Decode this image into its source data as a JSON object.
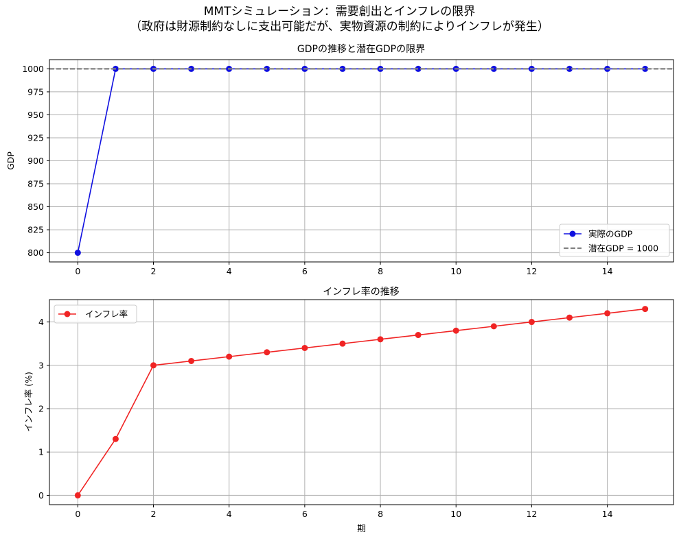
{
  "suptitle": {
    "line1": "MMTシミュレーション：需要創出とインフレの限界",
    "line2": "（政府は財源制約なしに支出可能だが、実物資源の制約によりインフレが発生）"
  },
  "colors": {
    "gdp": "#1010e0",
    "potential": "#808080",
    "inflation": "#f02424",
    "grid": "#b0b0b0"
  },
  "chart_data": [
    {
      "type": "line",
      "title": "GDPの推移と潜在GDPの限界",
      "xlabel": "",
      "ylabel": "GDP",
      "x": [
        0,
        1,
        2,
        3,
        4,
        5,
        6,
        7,
        8,
        9,
        10,
        11,
        12,
        13,
        14,
        15
      ],
      "xlim": [
        -0.75,
        15.75
      ],
      "ylim": [
        790,
        1010
      ],
      "xticks": [
        0,
        2,
        4,
        6,
        8,
        10,
        12,
        14
      ],
      "yticks": [
        800,
        825,
        850,
        875,
        900,
        925,
        950,
        975,
        1000
      ],
      "grid": true,
      "legend_position": "lower-right",
      "series": [
        {
          "name": "実際のGDP",
          "style": "solid-marker",
          "color": "#1010e0",
          "values": [
            800,
            1000,
            1000,
            1000,
            1000,
            1000,
            1000,
            1000,
            1000,
            1000,
            1000,
            1000,
            1000,
            1000,
            1000,
            1000
          ]
        },
        {
          "name": "潜在GDP = 1000",
          "style": "dashed-hline",
          "color": "#808080",
          "value": 1000
        }
      ]
    },
    {
      "type": "line",
      "title": "インフレ率の推移",
      "xlabel": "期",
      "ylabel": "インフレ率 (%)",
      "x": [
        0,
        1,
        2,
        3,
        4,
        5,
        6,
        7,
        8,
        9,
        10,
        11,
        12,
        13,
        14,
        15
      ],
      "xlim": [
        -0.75,
        15.75
      ],
      "ylim": [
        -0.215,
        4.515
      ],
      "xticks": [
        0,
        2,
        4,
        6,
        8,
        10,
        12,
        14
      ],
      "yticks": [
        0,
        1,
        2,
        3,
        4
      ],
      "grid": true,
      "legend_position": "upper-left",
      "series": [
        {
          "name": "インフレ率",
          "style": "solid-marker",
          "color": "#f02424",
          "values": [
            0,
            1.3,
            3.0,
            3.1,
            3.2,
            3.3,
            3.4,
            3.5,
            3.6,
            3.7,
            3.8,
            3.9,
            4.0,
            4.1,
            4.2,
            4.3
          ]
        }
      ]
    }
  ]
}
